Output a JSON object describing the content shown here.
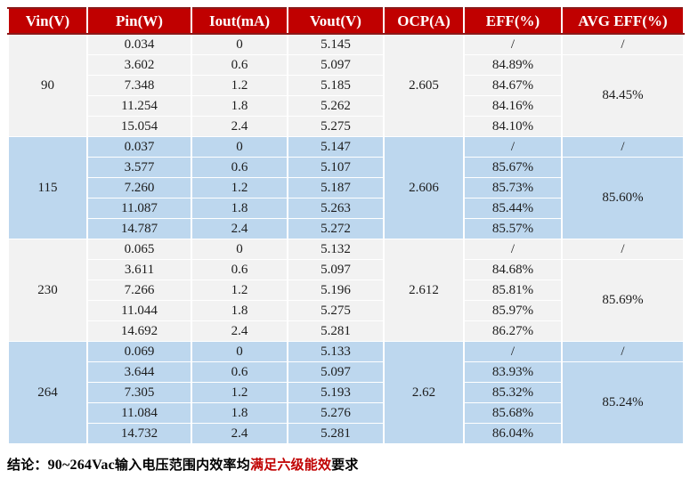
{
  "table": {
    "headers": [
      "Vin(V)",
      "Pin(W)",
      "Iout(mA)",
      "Vout(V)",
      "OCP(A)",
      "EFF(%)",
      "AVG EFF(%)"
    ],
    "groups": [
      {
        "vin": "90",
        "ocp": "2.605",
        "avg_eff_first": "/",
        "avg_eff": "84.45%",
        "rows": [
          {
            "pin": "0.034",
            "iout": "0",
            "vout": "5.145",
            "eff": "/"
          },
          {
            "pin": "3.602",
            "iout": "0.6",
            "vout": "5.097",
            "eff": "84.89%"
          },
          {
            "pin": "7.348",
            "iout": "1.2",
            "vout": "5.185",
            "eff": "84.67%"
          },
          {
            "pin": "11.254",
            "iout": "1.8",
            "vout": "5.262",
            "eff": "84.16%"
          },
          {
            "pin": "15.054",
            "iout": "2.4",
            "vout": "5.275",
            "eff": "84.10%"
          }
        ]
      },
      {
        "vin": "115",
        "ocp": "2.606",
        "avg_eff_first": "/",
        "avg_eff": "85.60%",
        "rows": [
          {
            "pin": "0.037",
            "iout": "0",
            "vout": "5.147",
            "eff": "/"
          },
          {
            "pin": "3.577",
            "iout": "0.6",
            "vout": "5.107",
            "eff": "85.67%"
          },
          {
            "pin": "7.260",
            "iout": "1.2",
            "vout": "5.187",
            "eff": "85.73%"
          },
          {
            "pin": "11.087",
            "iout": "1.8",
            "vout": "5.263",
            "eff": "85.44%"
          },
          {
            "pin": "14.787",
            "iout": "2.4",
            "vout": "5.272",
            "eff": "85.57%"
          }
        ]
      },
      {
        "vin": "230",
        "ocp": "2.612",
        "avg_eff_first": "/",
        "avg_eff": "85.69%",
        "rows": [
          {
            "pin": "0.065",
            "iout": "0",
            "vout": "5.132",
            "eff": "/"
          },
          {
            "pin": "3.611",
            "iout": "0.6",
            "vout": "5.097",
            "eff": "84.68%"
          },
          {
            "pin": "7.266",
            "iout": "1.2",
            "vout": "5.196",
            "eff": "85.81%"
          },
          {
            "pin": "11.044",
            "iout": "1.8",
            "vout": "5.275",
            "eff": "85.97%"
          },
          {
            "pin": "14.692",
            "iout": "2.4",
            "vout": "5.281",
            "eff": "86.27%"
          }
        ]
      },
      {
        "vin": "264",
        "ocp": "2.62",
        "avg_eff_first": "/",
        "avg_eff": "85.24%",
        "rows": [
          {
            "pin": "0.069",
            "iout": "0",
            "vout": "5.133",
            "eff": "/"
          },
          {
            "pin": "3.644",
            "iout": "0.6",
            "vout": "5.097",
            "eff": "83.93%"
          },
          {
            "pin": "7.305",
            "iout": "1.2",
            "vout": "5.193",
            "eff": "85.32%"
          },
          {
            "pin": "11.084",
            "iout": "1.8",
            "vout": "5.276",
            "eff": "85.68%"
          },
          {
            "pin": "14.732",
            "iout": "2.4",
            "vout": "5.281",
            "eff": "86.04%"
          }
        ]
      }
    ]
  },
  "conclusion": {
    "label": "结论：",
    "range": "90~264Vac",
    "text_before": "输入电压范围内效率均",
    "highlight": "满足六级能效",
    "text_after": "要求"
  },
  "colors": {
    "header_bg": "#c00000",
    "header_border": "#8b1a1a",
    "header_text": "#ffffff",
    "group_bg_light": "#f2f2f2",
    "group_bg_blue": "#bdd7ee",
    "highlight_red": "#c00000"
  }
}
